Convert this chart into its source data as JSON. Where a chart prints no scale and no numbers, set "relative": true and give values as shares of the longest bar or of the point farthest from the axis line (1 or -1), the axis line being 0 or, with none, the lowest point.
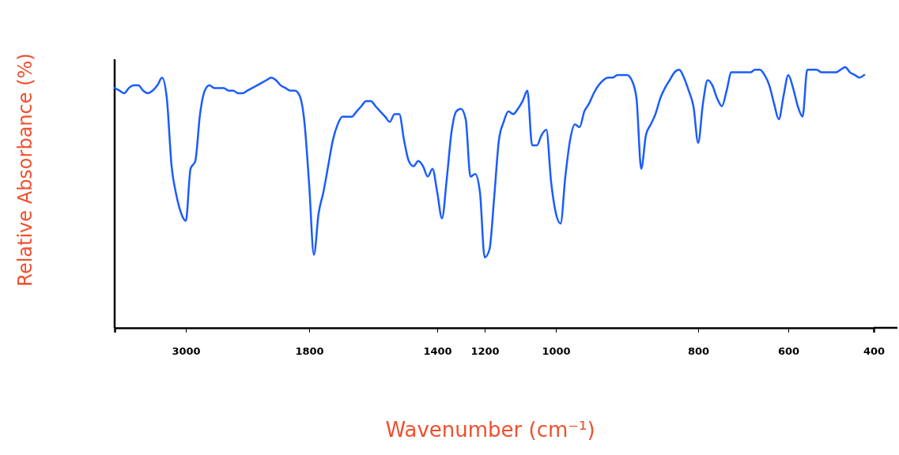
{
  "chart_data": {
    "type": "line",
    "relative": true,
    "xlabel": "Wavenumber (cm⁻¹)",
    "ylabel": "Relative Absorbance (%)",
    "color": "#1a5cff",
    "categories": [
      null,
      null,
      null,
      null,
      null,
      null,
      null,
      null,
      null,
      null,
      null,
      null,
      null,
      null,
      null,
      "3000",
      null,
      null,
      null,
      null,
      null,
      null,
      null,
      null,
      null,
      null,
      null,
      null,
      null,
      null,
      null,
      null,
      null,
      null,
      null,
      null,
      null,
      null,
      null,
      null,
      null,
      "1800",
      null,
      null,
      null,
      null,
      null,
      null,
      null,
      null,
      null,
      null,
      null,
      null,
      null,
      null,
      null,
      null,
      null,
      null,
      null,
      null,
      null,
      null,
      null,
      null,
      null,
      null,
      "1400",
      null,
      null,
      null,
      null,
      null,
      null,
      null,
      null,
      null,
      "1200",
      null,
      null,
      null,
      null,
      null,
      null,
      null,
      null,
      null,
      null,
      null,
      null,
      null,
      null,
      "1000",
      null,
      null,
      null,
      null,
      null,
      null,
      null,
      null,
      null,
      null,
      null,
      null,
      null,
      null,
      null,
      null,
      null,
      null,
      null,
      null,
      null,
      null,
      null,
      null,
      null,
      null,
      null,
      null,
      null,
      "800",
      null,
      null,
      null,
      null,
      null,
      null,
      null,
      null,
      null,
      null,
      null,
      null,
      null,
      null,
      null,
      null,
      null,
      null,
      "600",
      null,
      null,
      null,
      null,
      null,
      null,
      null,
      null,
      null,
      null,
      null,
      null,
      null,
      null,
      null,
      null,
      null,
      "400"
    ],
    "values": [
      0.92,
      0.91,
      0.9,
      0.92,
      0.93,
      0.93,
      0.91,
      0.9,
      0.91,
      0.93,
      0.96,
      0.88,
      0.62,
      0.51,
      0.44,
      0.41,
      0.61,
      0.64,
      0.82,
      0.91,
      0.93,
      0.92,
      0.92,
      0.92,
      0.91,
      0.91,
      0.9,
      0.9,
      0.91,
      0.92,
      0.93,
      0.94,
      0.95,
      0.96,
      0.95,
      0.93,
      0.92,
      0.91,
      0.91,
      0.89,
      0.79,
      0.55,
      0.28,
      0.44,
      0.52,
      0.62,
      0.72,
      0.78,
      0.81,
      0.81,
      0.81,
      0.83,
      0.85,
      0.87,
      0.87,
      0.85,
      0.83,
      0.81,
      0.79,
      0.82,
      0.82,
      0.72,
      0.64,
      0.62,
      0.64,
      0.62,
      0.58,
      0.61,
      0.52,
      0.42,
      0.57,
      0.75,
      0.83,
      0.84,
      0.8,
      0.58,
      0.59,
      0.52,
      0.27,
      0.3,
      0.5,
      0.72,
      0.79,
      0.83,
      0.82,
      0.84,
      0.87,
      0.91,
      0.7,
      0.7,
      0.74,
      0.76,
      0.56,
      0.44,
      0.4,
      0.58,
      0.72,
      0.78,
      0.77,
      0.83,
      0.86,
      0.9,
      0.93,
      0.95,
      0.96,
      0.96,
      0.97,
      0.97,
      0.97,
      0.95,
      0.88,
      0.61,
      0.74,
      0.78,
      0.82,
      0.88,
      0.92,
      0.95,
      0.98,
      0.99,
      0.96,
      0.91,
      0.85,
      0.71,
      0.86,
      0.95,
      0.93,
      0.88,
      0.85,
      0.91,
      0.98,
      0.98,
      0.98,
      0.98,
      0.98,
      0.99,
      0.99,
      0.97,
      0.93,
      0.86,
      0.8,
      0.89,
      0.97,
      0.92,
      0.85,
      0.81,
      0.99,
      0.99,
      0.99,
      0.98,
      0.98,
      0.98,
      0.98,
      0.99,
      1,
      0.98,
      0.97,
      0.96,
      0.97,
      null,
      null
    ]
  }
}
